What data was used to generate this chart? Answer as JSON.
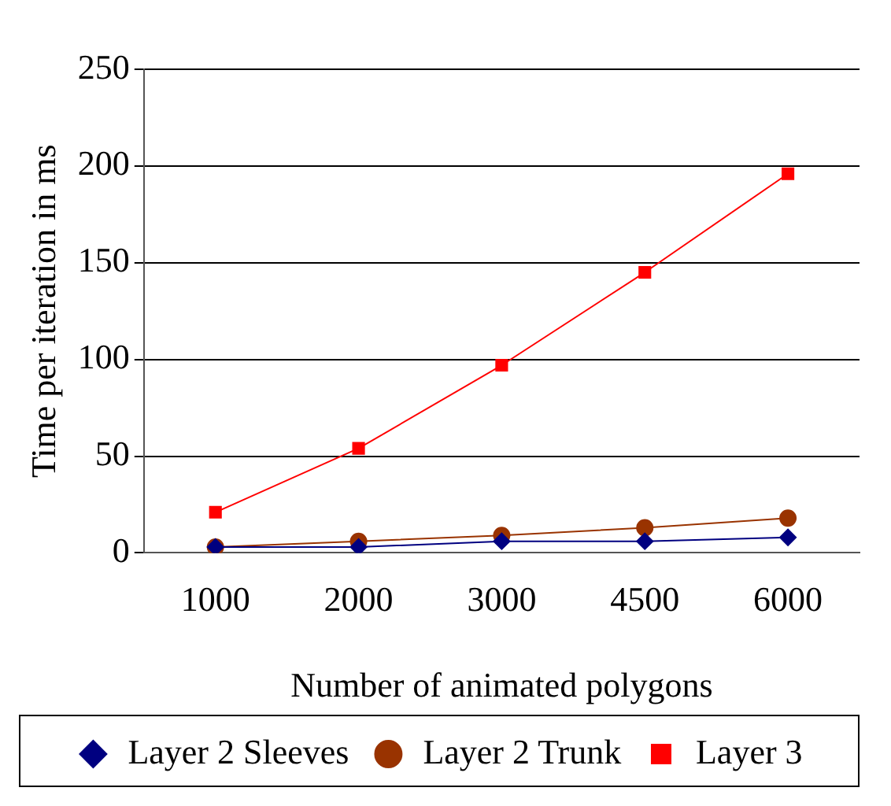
{
  "chart_data": {
    "type": "line",
    "xlabel": "Number of animated polygons",
    "ylabel": "Time per iteration in ms",
    "categories": [
      "1000",
      "2000",
      "3000",
      "4500",
      "6000"
    ],
    "series": [
      {
        "name": "Layer 2 Sleeves",
        "color": "#000080",
        "marker": "diamond",
        "values": [
          3,
          3,
          6,
          6,
          8
        ]
      },
      {
        "name": "Layer 2 Trunk",
        "color": "#993300",
        "marker": "circle",
        "values": [
          3,
          6,
          9,
          13,
          18
        ]
      },
      {
        "name": "Layer 3",
        "color": "#ff0000",
        "marker": "square",
        "values": [
          21,
          54,
          97,
          145,
          196
        ]
      }
    ],
    "ylim": [
      0,
      250
    ],
    "yticks": [
      0,
      50,
      100,
      150,
      200,
      250
    ],
    "grid": "y",
    "legend": "bottom"
  }
}
